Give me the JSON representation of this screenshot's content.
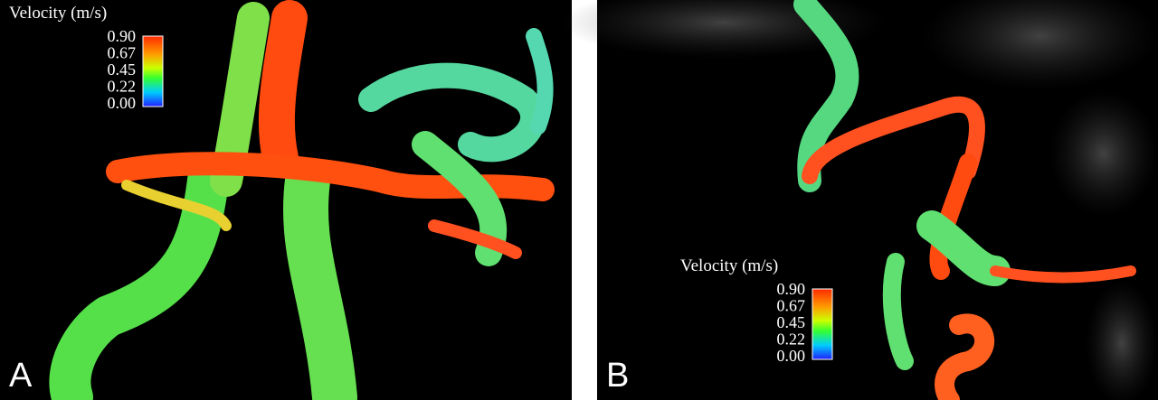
{
  "panels": [
    {
      "label": "A",
      "colorbar": {
        "title": "Velocity (m/s)",
        "ticks": [
          "0.90",
          "0.67",
          "0.45",
          "0.22",
          "0.00"
        ]
      }
    },
    {
      "label": "B",
      "colorbar": {
        "title": "Velocity (m/s)",
        "ticks": [
          "0.90",
          "0.67",
          "0.45",
          "0.22",
          "0.00"
        ]
      }
    }
  ]
}
